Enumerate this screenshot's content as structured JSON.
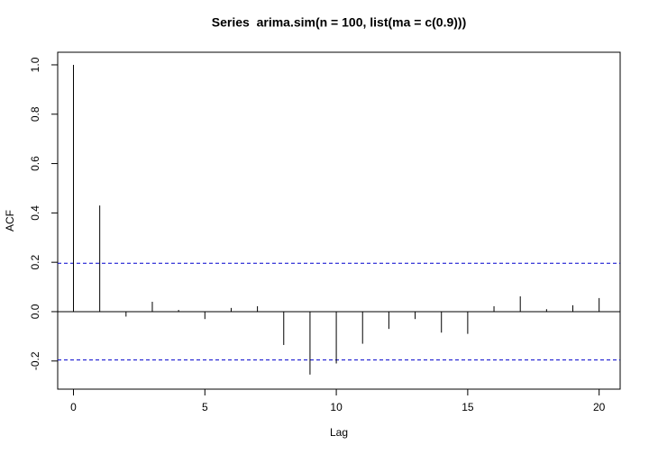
{
  "chart_data": {
    "type": "bar",
    "title": "Series  arima.sim(n = 100, list(ma = c(0.9)))",
    "x_label": "Lag",
    "y_label": "ACF",
    "x": [
      0,
      1,
      2,
      3,
      4,
      5,
      6,
      7,
      8,
      9,
      10,
      11,
      12,
      13,
      14,
      15,
      16,
      17,
      18,
      19,
      20
    ],
    "values": [
      1.0,
      0.43,
      -0.02,
      0.04,
      0.007,
      -0.03,
      0.015,
      0.022,
      -0.135,
      -0.255,
      -0.21,
      -0.13,
      -0.07,
      -0.03,
      -0.085,
      -0.09,
      0.022,
      0.062,
      0.01,
      0.026,
      0.055
    ],
    "color": "#000000",
    "confidence_bounds": [
      0.196,
      -0.196
    ],
    "confidence_color": "#0000cd",
    "xlim": [
      -0.6,
      20.8
    ],
    "ylim": [
      -0.314,
      1.051
    ],
    "xticks": [
      0,
      5,
      10,
      15,
      20
    ],
    "yticks": [
      -0.2,
      {
        "value": 0,
        "label": "0.0"
      },
      0.2,
      0.4,
      0.6,
      0.8,
      {
        "value": 1,
        "label": "1.0"
      }
    ]
  }
}
